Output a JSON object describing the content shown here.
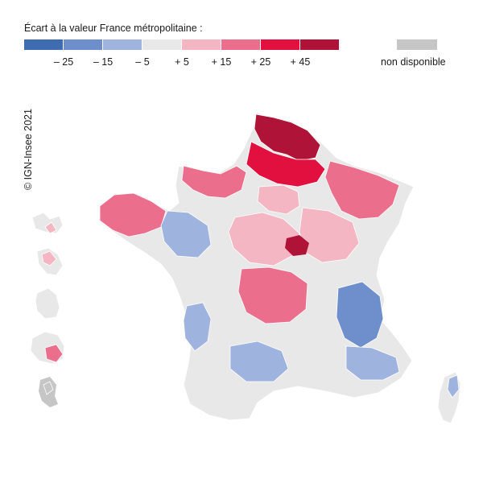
{
  "legend": {
    "title": "Écart à la valeur France métropolitaine :",
    "colors": [
      "#3f6bb0",
      "#6f8fcc",
      "#9fb3df",
      "#e8e8e8",
      "#f4b6c2",
      "#eb6f8c",
      "#e2103f",
      "#b01338"
    ],
    "ticks": [
      "– 25",
      "– 15",
      "– 5",
      "+ 5",
      "+ 15",
      "+ 25",
      "+ 45"
    ],
    "na_label": "non disponible",
    "na_color": "#c6c6c6"
  },
  "copyright": "© IGN-Insee 2021",
  "map": {
    "land_color": "#e8e8e8",
    "regions": [
      {
        "name": "nord-pas-de-calais",
        "category": "+ 45"
      },
      {
        "name": "picardie",
        "category": "+ 25"
      },
      {
        "name": "normandie",
        "category": "+ 15"
      },
      {
        "name": "bretagne",
        "category": "+ 15"
      },
      {
        "name": "champagne-lorraine",
        "category": "+ 15"
      },
      {
        "name": "alsace",
        "category": "+ 15"
      },
      {
        "name": "ile-de-france",
        "category": "+ 5"
      },
      {
        "name": "centre",
        "category": "+ 5"
      },
      {
        "name": "bourgogne",
        "category": "+ 5"
      },
      {
        "name": "auvergne-limousin",
        "category": "+ 15"
      },
      {
        "name": "pays-de-la-loire",
        "category": "– 5"
      },
      {
        "name": "alpes",
        "category": "– 15"
      },
      {
        "name": "midi-pyrenees",
        "category": "– 5"
      },
      {
        "name": "aquitaine",
        "category": "– 5"
      },
      {
        "name": "provence",
        "category": "– 5"
      },
      {
        "name": "corse",
        "category": "– 5"
      },
      {
        "name": "guadeloupe",
        "category": "+ 5"
      },
      {
        "name": "martinique",
        "category": "+ 5"
      },
      {
        "name": "reunion",
        "category": "+ 15"
      },
      {
        "name": "mayotte",
        "category": "non disponible"
      }
    ]
  }
}
